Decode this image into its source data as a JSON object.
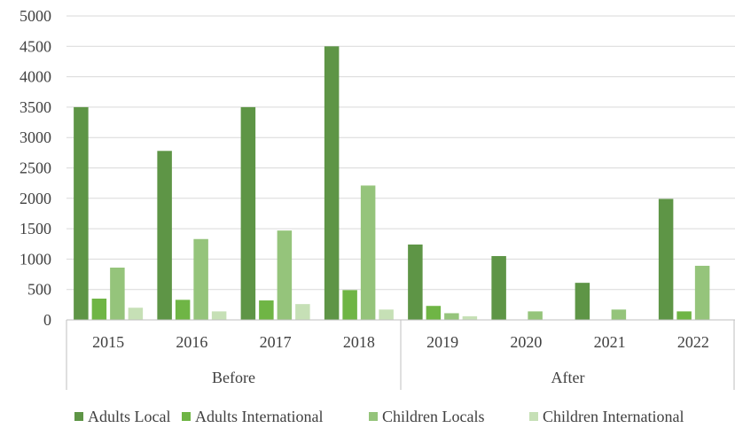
{
  "chart_data": {
    "type": "bar",
    "categories": [
      "2015",
      "2016",
      "2017",
      "2018",
      "2019",
      "2020",
      "2021",
      "2022"
    ],
    "groups": [
      {
        "label": "Before",
        "categories": [
          "2015",
          "2016",
          "2017",
          "2018"
        ]
      },
      {
        "label": "After",
        "categories": [
          "2019",
          "2020",
          "2021",
          "2022"
        ]
      }
    ],
    "series": [
      {
        "name": "Adults Local",
        "color": "#5e9546",
        "values": [
          3500,
          2780,
          3500,
          4500,
          1240,
          1050,
          610,
          1990
        ]
      },
      {
        "name": "Adults International",
        "color": "#6fb545",
        "values": [
          350,
          330,
          320,
          490,
          230,
          0,
          0,
          140
        ]
      },
      {
        "name": "Children Locals",
        "color": "#95c47b",
        "values": [
          860,
          1330,
          1470,
          2210,
          110,
          140,
          170,
          890
        ]
      },
      {
        "name": "Children International",
        "color": "#c6e0b6",
        "values": [
          200,
          140,
          260,
          170,
          60,
          0,
          0,
          0
        ]
      }
    ],
    "ylim": [
      0,
      5000
    ],
    "yticks": [
      0,
      500,
      1000,
      1500,
      2000,
      2500,
      3000,
      3500,
      4000,
      4500,
      5000
    ],
    "grid": true,
    "legend": "bottom",
    "title": "",
    "xlabel": "",
    "ylabel": ""
  }
}
